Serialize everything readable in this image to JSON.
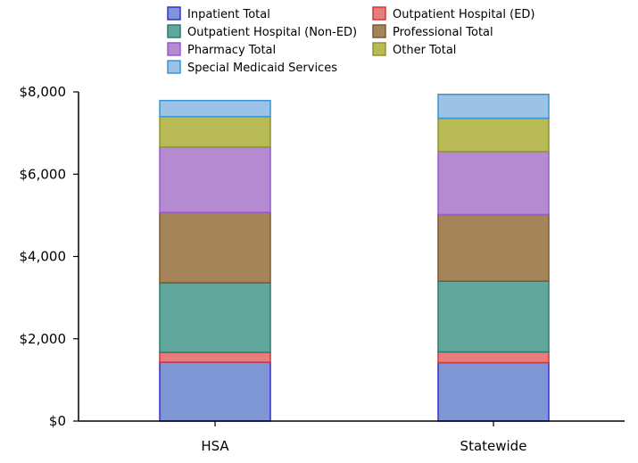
{
  "chart_data": {
    "type": "bar",
    "stacked": true,
    "categories": [
      "HSA",
      "Statewide"
    ],
    "series": [
      {
        "name": "Inpatient Total",
        "values": [
          1430,
          1420
        ],
        "color": "#7f96d4",
        "stroke": "#3a2fd0"
      },
      {
        "name": "Outpatient Hospital (ED)",
        "values": [
          240,
          260
        ],
        "color": "#e97c7c",
        "stroke": "#d03a3a"
      },
      {
        "name": "Outpatient Hospital (Non-ED)",
        "values": [
          1690,
          1720
        ],
        "color": "#62a79c",
        "stroke": "#2f7a6e"
      },
      {
        "name": "Professional Total",
        "values": [
          1710,
          1620
        ],
        "color": "#a6845a",
        "stroke": "#7a5a30"
      },
      {
        "name": "Pharmacy Total",
        "values": [
          1590,
          1530
        ],
        "color": "#b48ad0",
        "stroke": "#9a5ad0"
      },
      {
        "name": "Other Total",
        "values": [
          740,
          810
        ],
        "color": "#b8bb55",
        "stroke": "#8f9530"
      },
      {
        "name": "Special Medicaid Services",
        "values": [
          390,
          580
        ],
        "color": "#9cc3e6",
        "stroke": "#3a94d8"
      }
    ],
    "ylim": [
      0,
      8000
    ],
    "yticks": [
      0,
      2000,
      4000,
      6000,
      8000
    ],
    "ytick_labels": [
      "$0",
      "$2,000",
      "$4,000",
      "$6,000",
      "$8,000"
    ],
    "legend_position": "top",
    "grid": false,
    "title": "",
    "xlabel": "",
    "ylabel": ""
  }
}
